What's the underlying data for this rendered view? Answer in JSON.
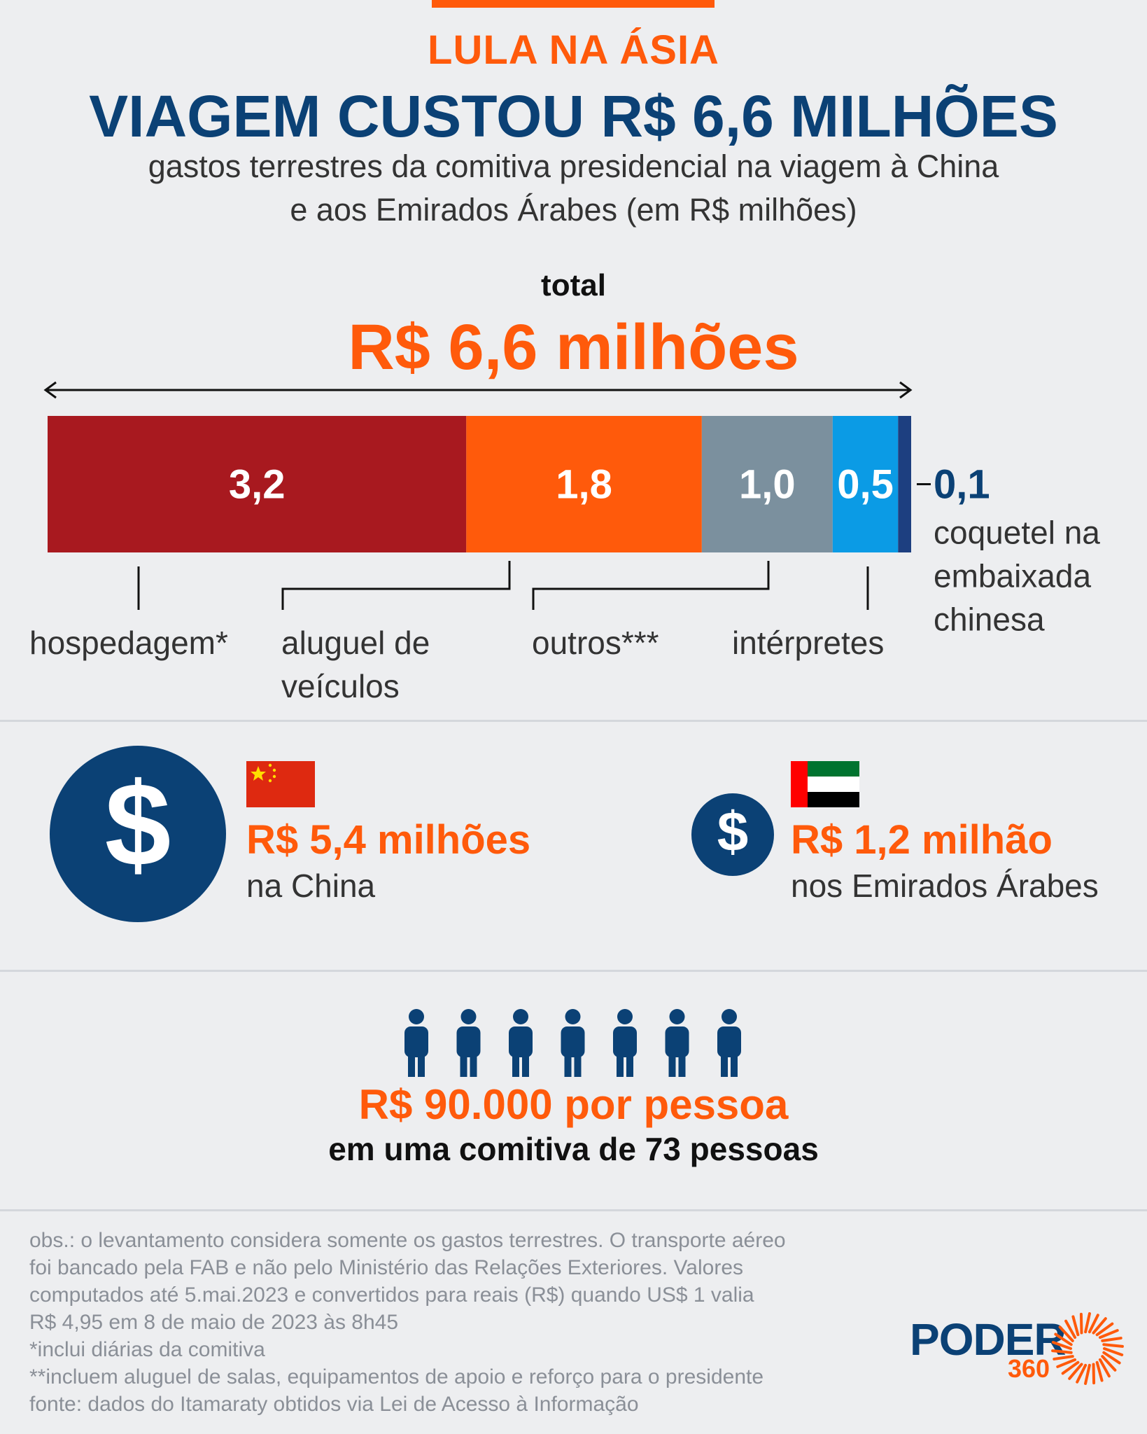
{
  "header": {
    "kicker": "LULA NA ÁSIA",
    "title": "VIAGEM CUSTOU R$ 6,6 MILHÕES",
    "subtitle_line1": "gastos terrestres da comitiva presidencial na viagem à China",
    "subtitle_line2": "e aos Emirados Árabes (em R$ milhões)"
  },
  "total": {
    "label": "total",
    "value": "R$ 6,6 milhões"
  },
  "chart_data": {
    "type": "bar",
    "orientation": "horizontal-stacked",
    "unit": "R$ milhões",
    "total": 6.6,
    "segments": [
      {
        "value": 3.2,
        "label": "3,2",
        "category_lines": [
          "hospedagem*"
        ],
        "color": "#a8191f"
      },
      {
        "value": 1.8,
        "label": "1,8",
        "category_lines": [
          "aluguel de",
          "veículos"
        ],
        "color": "#ff5a0b"
      },
      {
        "value": 1.0,
        "label": "1,0",
        "category_lines": [
          "outros***"
        ],
        "color": "#7b909e"
      },
      {
        "value": 0.5,
        "label": "0,5",
        "category_lines": [
          "intérpretes"
        ],
        "color": "#0b9be5"
      },
      {
        "value": 0.1,
        "label": "0,1",
        "category_lines": [
          "coquetel na",
          "embaixada",
          "chinesa"
        ],
        "color": "#1d3f80"
      }
    ]
  },
  "countries": {
    "china": {
      "amount": "R$ 5,4 milhões",
      "desc": "na China",
      "flag": "china-flag"
    },
    "uae": {
      "amount": "R$ 1,2 milhão",
      "desc": "nos Emirados Árabes",
      "flag": "uae-flag"
    }
  },
  "per_person": {
    "amount": "R$ 90.000 por pessoa",
    "desc": "em uma comitiva de 73 pessoas",
    "icon_count": 7
  },
  "notes": [
    "obs.: o levantamento considera somente os gastos terrestres. O transporte aéreo",
    "foi bancado pela FAB e não pelo Ministério das Relações Exteriores. Valores",
    "computados até 5.mai.2023 e convertidos para reais (R$) quando US$ 1 valia",
    "R$ 4,95 em 8 de maio de 2023 às 8h45",
    "*inclui diárias da comitiva",
    "**incluem aluguel de salas, equipamentos de apoio e reforço para o presidente",
    "fonte: dados do Itamaraty obtidos via Lei de Acesso à Informação"
  ],
  "logo": {
    "name": "PODER",
    "number": "360"
  },
  "colors": {
    "accent": "#ff5a0b",
    "navy": "#0b4175",
    "background": "#edeef0"
  }
}
